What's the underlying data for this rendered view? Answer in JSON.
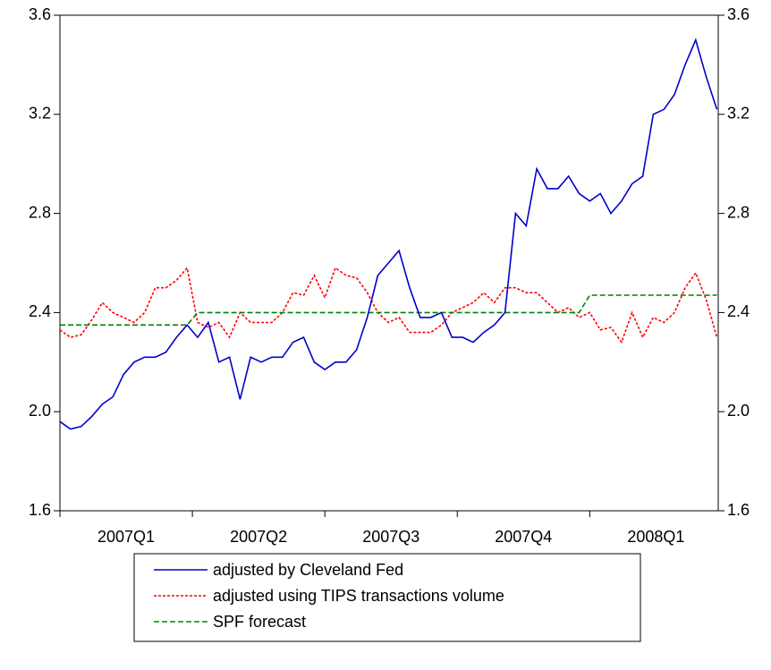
{
  "chart_data": {
    "type": "line",
    "x": [
      0,
      0.08,
      0.16,
      0.24,
      0.32,
      0.4,
      0.48,
      0.56,
      0.64,
      0.72,
      0.8,
      0.88,
      0.96,
      1.04,
      1.12,
      1.2,
      1.28,
      1.36,
      1.44,
      1.52,
      1.6,
      1.68,
      1.76,
      1.84,
      1.92,
      2,
      2.08,
      2.16,
      2.24,
      2.32,
      2.4,
      2.48,
      2.56,
      2.64,
      2.72,
      2.8,
      2.88,
      2.96,
      3.04,
      3.12,
      3.2,
      3.28,
      3.36,
      3.44,
      3.52,
      3.6,
      3.68,
      3.76,
      3.84,
      3.92,
      4,
      4.08,
      4.16,
      4.24,
      4.32,
      4.4,
      4.48,
      4.56,
      4.64,
      4.72,
      4.8,
      4.88,
      4.96
    ],
    "xlim": [
      0,
      4.97
    ],
    "xticks": [
      0,
      1,
      2,
      3,
      4
    ],
    "quarter_labels": [
      "2007Q1",
      "2007Q2",
      "2007Q3",
      "2007Q4",
      "2008Q1"
    ],
    "ylim": [
      1.6,
      3.6
    ],
    "yticks": [
      1.6,
      {
        "value": 2,
        "label": "2.0"
      },
      2.4,
      2.8,
      3.2,
      3.6
    ],
    "series": [
      {
        "name": "adjusted by Cleveland Fed",
        "color": "#0000cc",
        "dash": "none",
        "values": [
          1.96,
          1.93,
          1.94,
          1.98,
          2.03,
          2.06,
          2.15,
          2.2,
          2.22,
          2.22,
          2.24,
          2.3,
          2.35,
          2.3,
          2.36,
          2.2,
          2.22,
          2.05,
          2.22,
          2.2,
          2.22,
          2.22,
          2.28,
          2.3,
          2.2,
          2.17,
          2.2,
          2.2,
          2.25,
          2.38,
          2.55,
          2.6,
          2.65,
          2.5,
          2.38,
          2.38,
          2.4,
          2.3,
          2.3,
          2.28,
          2.32,
          2.35,
          2.4,
          2.8,
          2.75,
          2.98,
          2.9,
          2.9,
          2.95,
          2.88,
          2.85,
          2.88,
          2.8,
          2.85,
          2.92,
          2.95,
          3.2,
          3.22,
          3.28,
          3.4,
          3.5,
          3.35,
          3.22
        ]
      },
      {
        "name": "adjusted using TIPS transactions volume",
        "color": "#ff0000",
        "dash": "3,2",
        "values": [
          2.33,
          2.3,
          2.31,
          2.37,
          2.44,
          2.4,
          2.38,
          2.36,
          2.4,
          2.5,
          2.5,
          2.53,
          2.58,
          2.36,
          2.34,
          2.36,
          2.3,
          2.4,
          2.36,
          2.36,
          2.36,
          2.4,
          2.48,
          2.47,
          2.55,
          2.46,
          2.58,
          2.55,
          2.54,
          2.48,
          2.4,
          2.36,
          2.38,
          2.32,
          2.32,
          2.32,
          2.35,
          2.4,
          2.42,
          2.44,
          2.48,
          2.44,
          2.5,
          2.5,
          2.48,
          2.48,
          2.44,
          2.4,
          2.42,
          2.38,
          2.4,
          2.33,
          2.34,
          2.28,
          2.4,
          2.3,
          2.38,
          2.36,
          2.4,
          2.5,
          2.56,
          2.45,
          2.3
        ]
      },
      {
        "name": "SPF forecast",
        "color": "#008000",
        "dash": "6,3",
        "values": [
          2.35,
          2.35,
          2.35,
          2.35,
          2.35,
          2.35,
          2.35,
          2.35,
          2.35,
          2.35,
          2.35,
          2.35,
          2.35,
          2.4,
          2.4,
          2.4,
          2.4,
          2.4,
          2.4,
          2.4,
          2.4,
          2.4,
          2.4,
          2.4,
          2.4,
          2.4,
          2.4,
          2.4,
          2.4,
          2.4,
          2.4,
          2.4,
          2.4,
          2.4,
          2.4,
          2.4,
          2.4,
          2.4,
          2.4,
          2.4,
          2.4,
          2.4,
          2.4,
          2.4,
          2.4,
          2.4,
          2.4,
          2.4,
          2.4,
          2.4,
          2.47,
          2.47,
          2.47,
          2.47,
          2.47,
          2.47,
          2.47,
          2.47,
          2.47,
          2.47,
          2.47,
          2.47,
          2.47
        ]
      }
    ]
  }
}
